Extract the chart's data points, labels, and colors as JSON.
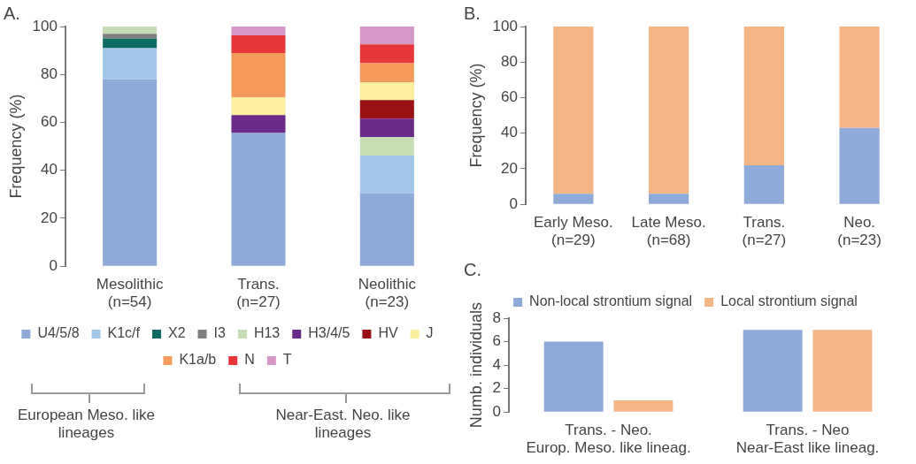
{
  "chart_data": [
    {
      "type": "bar",
      "title": "A.",
      "ylabel": "Frequency (%)",
      "categories": [
        "Mesolithic\n(n=54)",
        "Trans.\n(n=27)",
        "Neolithic\n(n=23)"
      ],
      "stacked": true,
      "ylim": [
        0,
        100
      ],
      "yticks": [
        0,
        20,
        40,
        60,
        80,
        100
      ],
      "legend": "bottom",
      "series": [
        {
          "name": "U4/5/8",
          "color": "#8eaad8",
          "values": [
            78,
            55.6,
            30.5
          ]
        },
        {
          "name": "K1c/f",
          "color": "#a3c6ea",
          "values": [
            13,
            null,
            15.7
          ]
        },
        {
          "name": "X2",
          "color": "#0e6b63",
          "values": [
            4,
            null,
            null
          ]
        },
        {
          "name": "I3",
          "color": "#7f7f7f",
          "values": [
            2,
            null,
            null
          ]
        },
        {
          "name": "H13",
          "color": "#c7ddb5",
          "values": [
            3,
            null,
            7.7
          ]
        },
        {
          "name": "H3/4/5",
          "color": "#6a2a8a",
          "values": [
            null,
            7.4,
            7.7
          ]
        },
        {
          "name": "HV",
          "color": "#9b1115",
          "values": [
            null,
            null,
            7.7
          ]
        },
        {
          "name": "J",
          "color": "#fbee9c",
          "values": [
            null,
            7.4,
            7.5
          ]
        },
        {
          "name": "K1a/b",
          "color": "#f49a5a",
          "values": [
            null,
            18.5,
            7.9
          ]
        },
        {
          "name": "N",
          "color": "#e8373a",
          "values": [
            null,
            7.4,
            7.8
          ]
        },
        {
          "name": "T",
          "color": "#d597c6",
          "values": [
            null,
            3.7,
            7.5
          ]
        }
      ],
      "annotations": [
        "European Meso. like lineages",
        "Near-East. Neo. like lineages"
      ]
    },
    {
      "type": "bar",
      "title": "B.",
      "ylabel": "Frequency (%)",
      "categories": [
        "Early Meso.\n(n=29)",
        "Late Meso.\n(n=68)",
        "Trans.\n(n=27)",
        "Neo.\n(n=23)"
      ],
      "stacked": true,
      "ylim": [
        0,
        100
      ],
      "yticks": [
        0,
        20,
        40,
        60,
        80,
        100
      ],
      "series": [
        {
          "color": "#8eaad8",
          "values": [
            6,
            6,
            22,
            43
          ]
        },
        {
          "color": "#f5b584",
          "values": [
            94,
            94,
            78,
            57
          ]
        }
      ]
    },
    {
      "type": "bar",
      "title": "C.",
      "ylabel": "Numb. individuals",
      "categories": [
        "Trans. - Neo.\nEurop. Meso. like lineag.",
        "Trans. - Neo\nNear-East like lineag."
      ],
      "ylim": [
        0,
        8
      ],
      "yticks": [
        0,
        2,
        4,
        6,
        8
      ],
      "legend": "top",
      "series": [
        {
          "name": "Non-local strontium signal",
          "color": "#8eaad8",
          "values": [
            6,
            7
          ]
        },
        {
          "name": "Local strontium signal",
          "color": "#f5b584",
          "values": [
            1,
            7
          ]
        }
      ]
    }
  ]
}
